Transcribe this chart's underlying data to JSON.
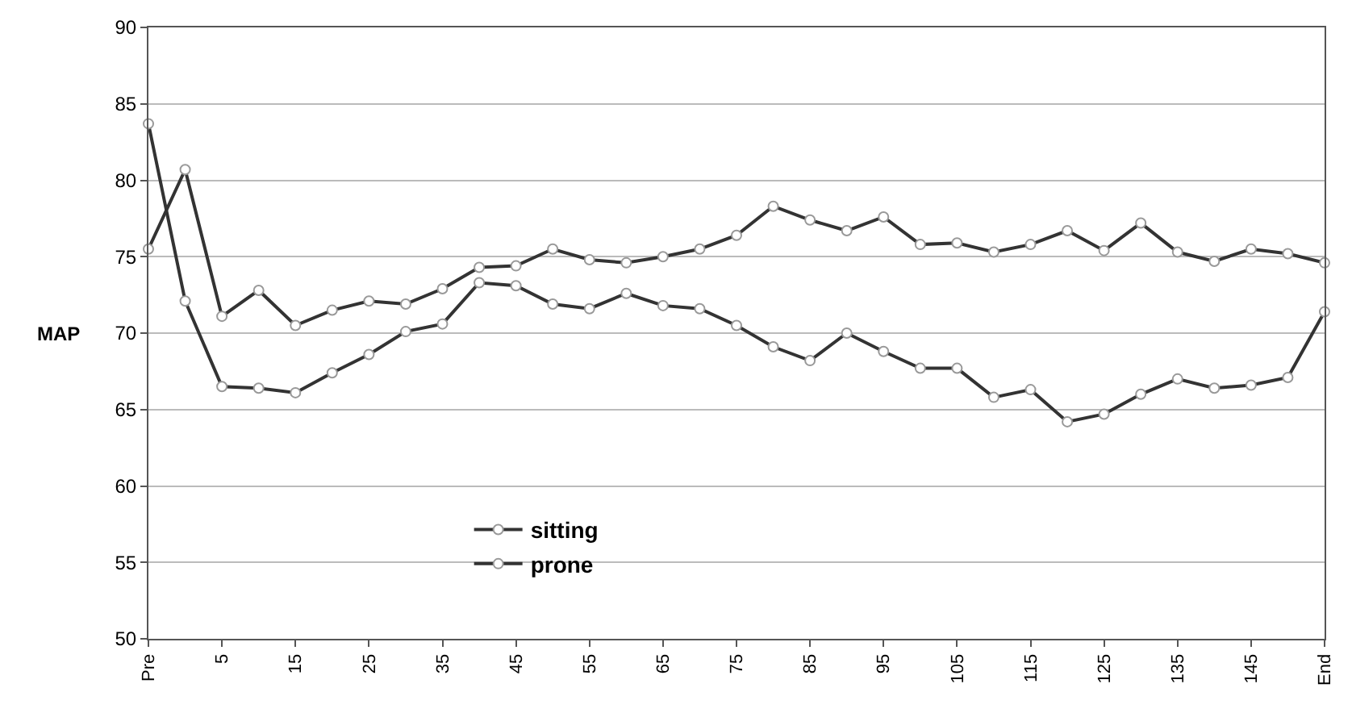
{
  "chart_data": {
    "type": "line",
    "ylabel": "MAP",
    "categories": [
      "Pre",
      null,
      "5",
      null,
      "15",
      null,
      "25",
      null,
      "35",
      null,
      "45",
      null,
      "55",
      null,
      "65",
      null,
      "75",
      null,
      "85",
      null,
      "95",
      null,
      "105",
      null,
      "115",
      null,
      "125",
      null,
      "135",
      null,
      "145",
      null,
      "End"
    ],
    "series": [
      {
        "name": "sitting",
        "color": "#333333",
        "values": [
          75.5,
          80.7,
          71.1,
          72.8,
          70.5,
          71.5,
          72.1,
          71.9,
          72.9,
          74.3,
          74.4,
          75.5,
          74.8,
          74.6,
          75.0,
          75.5,
          76.4,
          78.3,
          77.4,
          76.7,
          77.6,
          75.8,
          75.9,
          75.3,
          75.8,
          76.7,
          75.4,
          77.2,
          75.3,
          74.7,
          75.5,
          75.2,
          74.6
        ]
      },
      {
        "name": "prone",
        "color": "#333333",
        "values": [
          83.7,
          72.1,
          66.5,
          66.4,
          66.1,
          67.4,
          68.6,
          70.1,
          70.6,
          73.3,
          73.1,
          71.9,
          71.6,
          72.6,
          71.8,
          71.6,
          70.5,
          69.1,
          68.2,
          70.0,
          68.8,
          67.7,
          67.7,
          65.8,
          66.3,
          64.2,
          64.7,
          66.0,
          67.0,
          66.4,
          66.6,
          67.1,
          71.4
        ]
      }
    ],
    "ylim": [
      50,
      90
    ],
    "yticks": [
      50,
      55,
      60,
      65,
      70,
      75,
      80,
      85,
      90
    ],
    "grid": "y",
    "legend": "bottom left",
    "marker": "circle",
    "line_style": "solid"
  }
}
